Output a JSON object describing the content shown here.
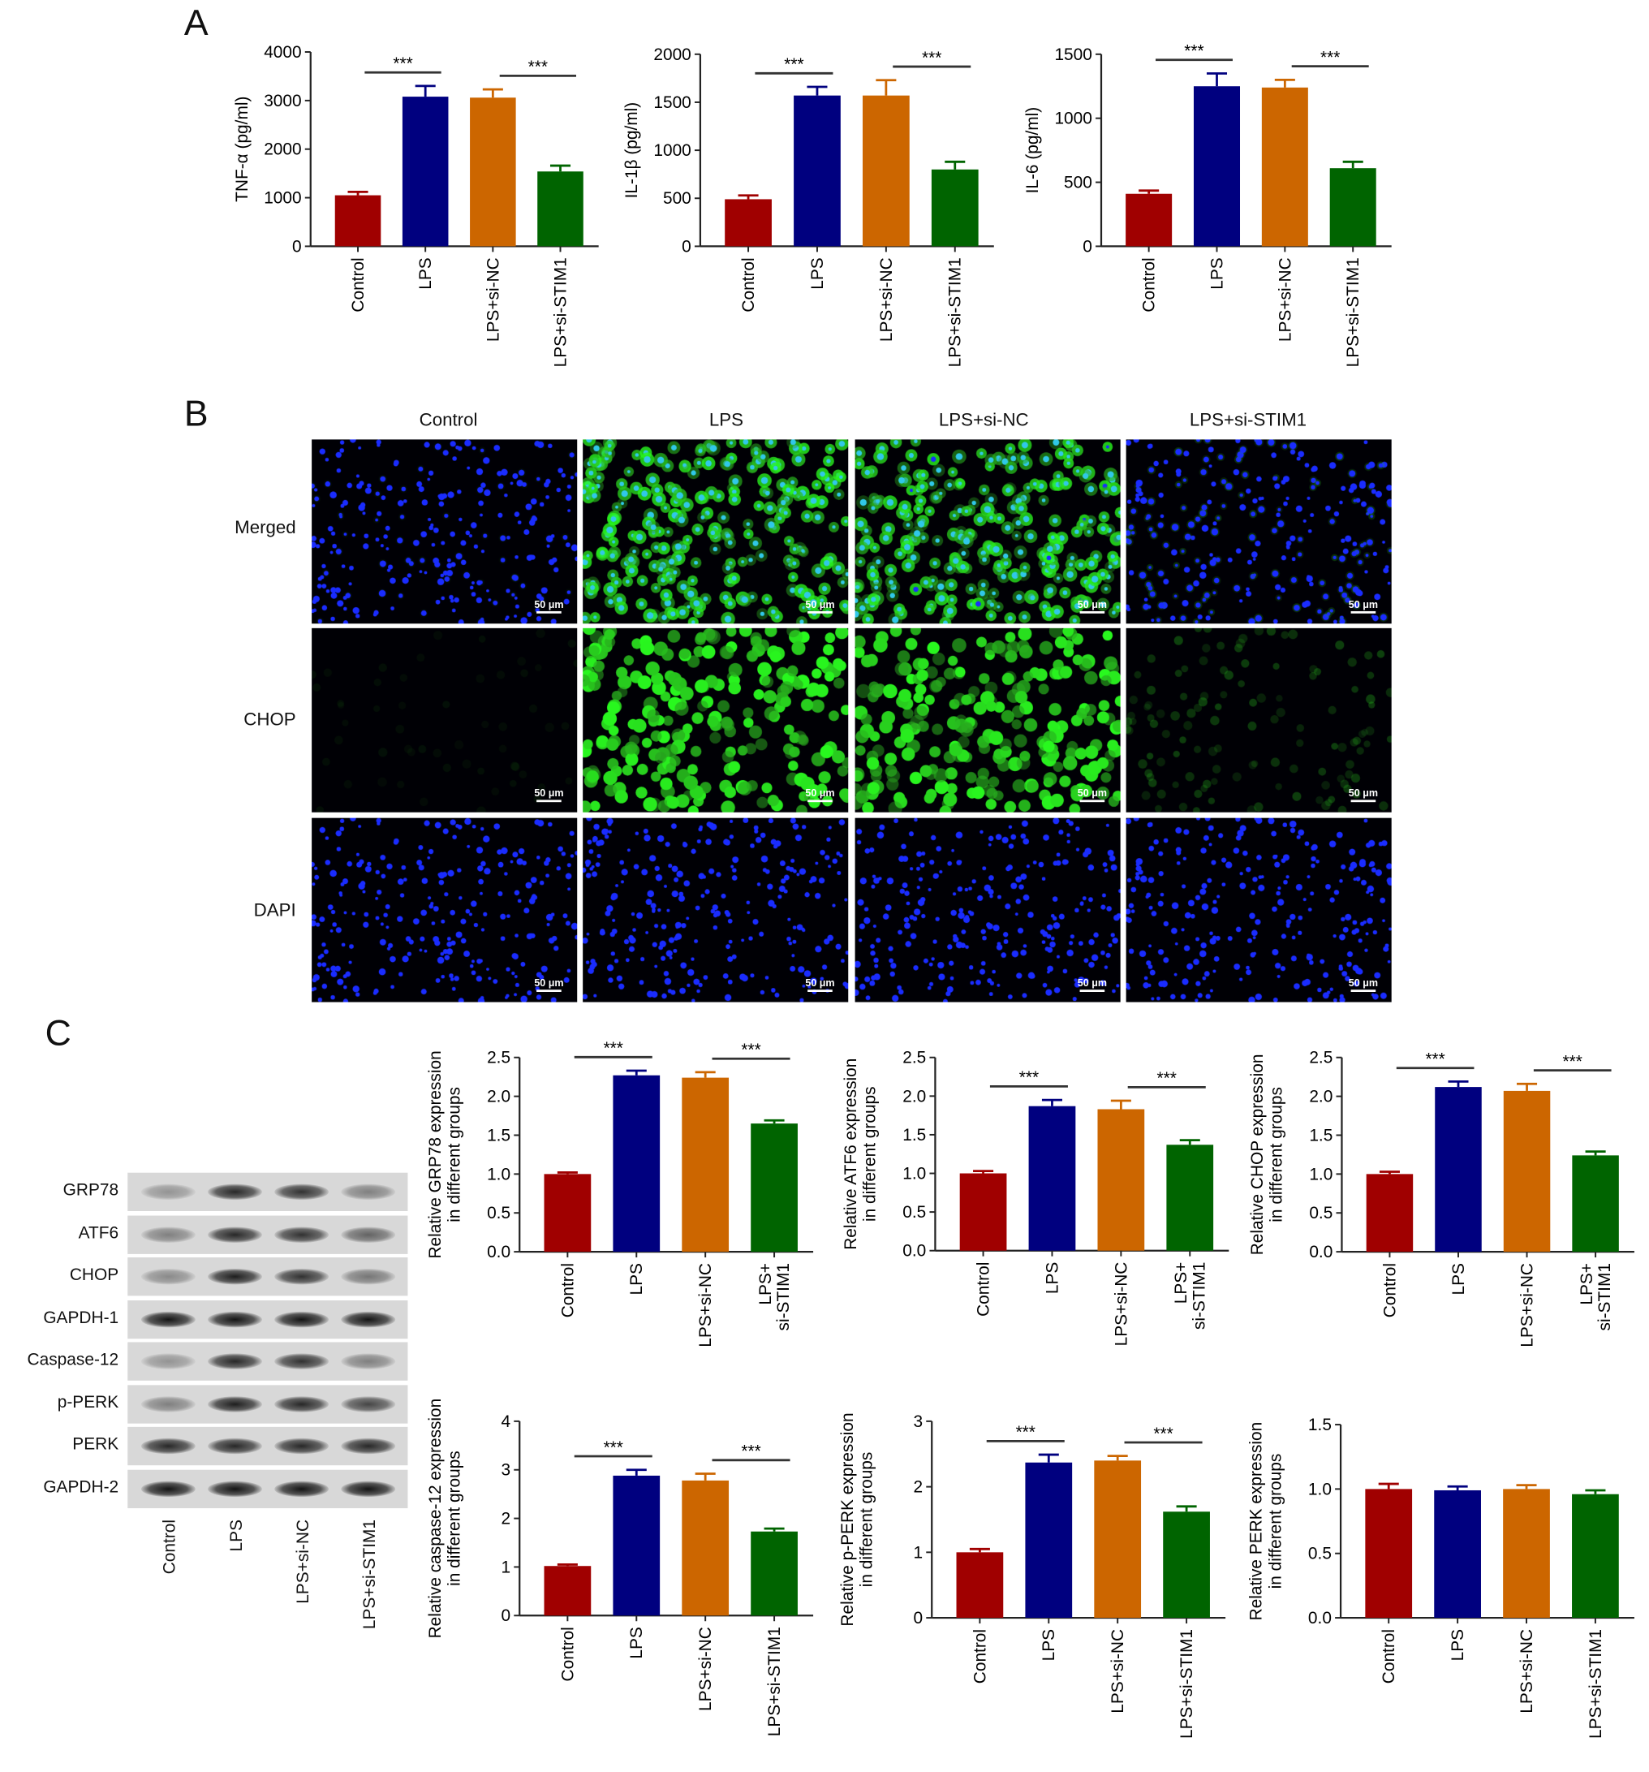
{
  "panels": {
    "A": "A",
    "B": "B",
    "C": "C"
  },
  "colors": {
    "Control": "#a00000",
    "LPS": "#00007f",
    "LPS+si-NC": "#cc6600",
    "LPS+si-STIM1": "#006400"
  },
  "significance": "***",
  "chart_data": [
    {
      "type": "bar",
      "panel": "A",
      "ylabel": "TNF-α (pg/ml)",
      "ylim": [
        0,
        4000
      ],
      "yticks": [
        "0",
        "1000",
        "2000",
        "3000",
        "4000"
      ],
      "categories": [
        "Control",
        "LPS",
        "LPS+si-NC",
        "LPS+si-STIM1"
      ],
      "values": [
        1050,
        3080,
        3060,
        1540
      ],
      "errors": [
        70,
        220,
        170,
        120
      ],
      "significance_pairs": [
        [
          0,
          1
        ],
        [
          2,
          3
        ]
      ]
    },
    {
      "type": "bar",
      "panel": "A",
      "ylabel": "IL-1β (pg/ml)",
      "ylim": [
        0,
        2000
      ],
      "yticks": [
        "0",
        "500",
        "1000",
        "1500",
        "2000"
      ],
      "categories": [
        "Control",
        "LPS",
        "LPS+si-NC",
        "LPS+si-STIM1"
      ],
      "values": [
        490,
        1570,
        1570,
        800
      ],
      "errors": [
        40,
        90,
        160,
        80
      ],
      "significance_pairs": [
        [
          0,
          1
        ],
        [
          2,
          3
        ]
      ]
    },
    {
      "type": "bar",
      "panel": "A",
      "ylabel": "IL-6 (pg/ml)",
      "ylim": [
        0,
        1500
      ],
      "yticks": [
        "0",
        "500",
        "1000",
        "1500"
      ],
      "categories": [
        "Control",
        "LPS",
        "LPS+si-NC",
        "LPS+si-STIM1"
      ],
      "values": [
        410,
        1250,
        1240,
        610
      ],
      "errors": [
        25,
        100,
        60,
        50
      ],
      "significance_pairs": [
        [
          0,
          1
        ],
        [
          2,
          3
        ]
      ]
    },
    {
      "type": "bar",
      "panel": "C",
      "ylabel": "Relative GRP78 expression\nin different groups",
      "ylim": [
        0,
        2.5
      ],
      "yticks": [
        "0.0",
        "0.5",
        "1.0",
        "1.5",
        "2.0",
        "2.5"
      ],
      "categories": [
        "Control",
        "LPS",
        "LPS+si-NC",
        "LPS+\nsi-STIM1"
      ],
      "values": [
        1.0,
        2.27,
        2.24,
        1.65
      ],
      "errors": [
        0.02,
        0.06,
        0.07,
        0.04
      ],
      "significance_pairs": [
        [
          0,
          1
        ],
        [
          2,
          3
        ]
      ]
    },
    {
      "type": "bar",
      "panel": "C",
      "ylabel": "Relative ATF6 expression\nin different groups",
      "ylim": [
        0,
        2.5
      ],
      "yticks": [
        "0.0",
        "0.5",
        "1.0",
        "1.5",
        "2.0",
        "2.5"
      ],
      "categories": [
        "Control",
        "LPS",
        "LPS+si-NC",
        "LPS+\nsi-STIM1"
      ],
      "values": [
        1.0,
        1.87,
        1.83,
        1.37
      ],
      "errors": [
        0.03,
        0.08,
        0.11,
        0.06
      ],
      "significance_pairs": [
        [
          0,
          1
        ],
        [
          2,
          3
        ]
      ]
    },
    {
      "type": "bar",
      "panel": "C",
      "ylabel": "Relative CHOP expression\nin different groups",
      "ylim": [
        0,
        2.5
      ],
      "yticks": [
        "0.0",
        "0.5",
        "1.0",
        "1.5",
        "2.0",
        "2.5"
      ],
      "categories": [
        "Control",
        "LPS",
        "LPS+si-NC",
        "LPS+\nsi-STIM1"
      ],
      "values": [
        1.0,
        2.12,
        2.07,
        1.24
      ],
      "errors": [
        0.03,
        0.07,
        0.09,
        0.05
      ],
      "significance_pairs": [
        [
          0,
          1
        ],
        [
          2,
          3
        ]
      ]
    },
    {
      "type": "bar",
      "panel": "C",
      "ylabel": "Relative caspase-12 expression\nin different groups",
      "ylim": [
        0,
        4
      ],
      "yticks": [
        "0",
        "1",
        "2",
        "3",
        "4"
      ],
      "categories": [
        "Control",
        "LPS",
        "LPS+si-NC",
        "LPS+si-STIM1"
      ],
      "values": [
        1.02,
        2.88,
        2.78,
        1.73
      ],
      "errors": [
        0.03,
        0.12,
        0.14,
        0.06
      ],
      "significance_pairs": [
        [
          0,
          1
        ],
        [
          2,
          3
        ]
      ]
    },
    {
      "type": "bar",
      "panel": "C",
      "ylabel": "Relative p-PERK expression\nin different groups",
      "ylim": [
        0,
        3
      ],
      "yticks": [
        "0",
        "1",
        "2",
        "3"
      ],
      "categories": [
        "Control",
        "LPS",
        "LPS+si-NC",
        "LPS+si-STIM1"
      ],
      "values": [
        1.0,
        2.37,
        2.4,
        1.62
      ],
      "errors": [
        0.05,
        0.12,
        0.07,
        0.08
      ],
      "significance_pairs": [
        [
          0,
          1
        ],
        [
          2,
          3
        ]
      ]
    },
    {
      "type": "bar",
      "panel": "C",
      "ylabel": "Relative PERK expression\nin different groups",
      "ylim": [
        0,
        1.5
      ],
      "yticks": [
        "0.0",
        "0.5",
        "1.0",
        "1.5"
      ],
      "categories": [
        "Control",
        "LPS",
        "LPS+si-NC",
        "LPS+si-STIM1"
      ],
      "values": [
        1.0,
        0.99,
        1.0,
        0.96
      ],
      "errors": [
        0.04,
        0.03,
        0.03,
        0.03
      ],
      "significance_pairs": []
    }
  ],
  "microscopy": {
    "columns": [
      "Control",
      "LPS",
      "LPS+si-NC",
      "LPS+si-STIM1"
    ],
    "rows": [
      "Merged",
      "CHOP",
      "DAPI"
    ],
    "scale_bar": "50 μm"
  },
  "western_blot": {
    "bands": [
      "GRP78",
      "ATF6",
      "CHOP",
      "GAPDH-1",
      "Caspase-12",
      "p-PERK",
      "PERK",
      "GAPDH-2"
    ],
    "lanes": [
      "Control",
      "LPS",
      "LPS+si-NC",
      "LPS+si-STIM1"
    ]
  }
}
